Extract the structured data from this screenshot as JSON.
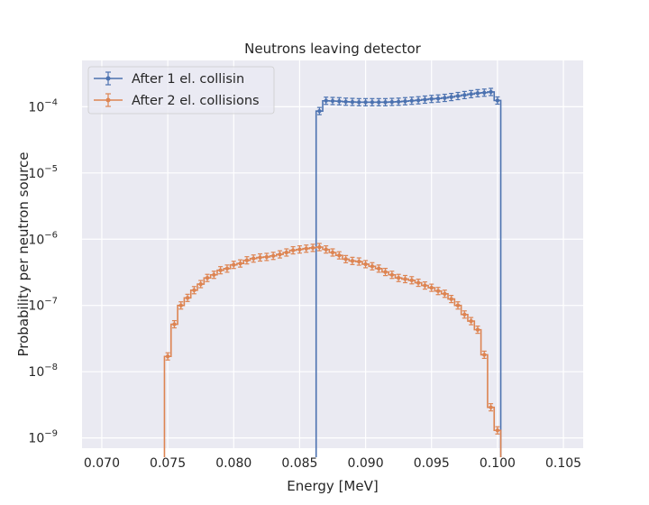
{
  "chart_data": {
    "type": "line",
    "title": "Neutrons leaving detector",
    "xlabel": "Energy [MeV]",
    "ylabel": "Probability per neutron source",
    "x_scale": "linear",
    "y_scale": "log",
    "xlim": [
      0.0685,
      0.1065
    ],
    "ylim": [
      7e-10,
      0.0005
    ],
    "xticks": [
      0.07,
      0.075,
      0.08,
      0.085,
      0.09,
      0.095,
      0.1,
      0.105
    ],
    "xtick_labels": [
      "0.070",
      "0.075",
      "0.080",
      "0.085",
      "0.090",
      "0.095",
      "0.100",
      "0.105"
    ],
    "ytick_exponents": [
      -9,
      -8,
      -7,
      -6,
      -5,
      -4
    ],
    "ytick_base": "10",
    "grid": true,
    "legend_position": "top-left",
    "background": "#eaeaf2",
    "series": [
      {
        "name": "After 1 el. collisin",
        "color": "#4c72b0",
        "x": [
          0.0865,
          0.087,
          0.0875,
          0.088,
          0.0885,
          0.089,
          0.0895,
          0.09,
          0.0905,
          0.091,
          0.0915,
          0.092,
          0.0925,
          0.093,
          0.0935,
          0.094,
          0.0945,
          0.095,
          0.0955,
          0.096,
          0.0965,
          0.097,
          0.0975,
          0.098,
          0.0985,
          0.099,
          0.0995,
          0.1
        ],
        "y": [
          8.6e-05,
          0.000123,
          0.000122,
          0.000121,
          0.000119,
          0.000118,
          0.000117,
          0.000117,
          0.000117,
          0.000117,
          0.000117,
          0.000118,
          0.000119,
          0.000121,
          0.000123,
          0.000125,
          0.000128,
          0.000131,
          0.000133,
          0.000136,
          0.00014,
          0.000145,
          0.00015,
          0.000155,
          0.00016,
          0.000163,
          0.000167,
          0.000124
        ],
        "floor": 7e-10
      },
      {
        "name": "After 2 el. collisions",
        "color": "#dd8452",
        "x": [
          0.075,
          0.0755,
          0.076,
          0.0765,
          0.077,
          0.0775,
          0.078,
          0.0785,
          0.079,
          0.0795,
          0.08,
          0.0805,
          0.081,
          0.0815,
          0.082,
          0.0825,
          0.083,
          0.0835,
          0.084,
          0.0845,
          0.085,
          0.0855,
          0.086,
          0.0865,
          0.087,
          0.0875,
          0.088,
          0.0885,
          0.089,
          0.0895,
          0.09,
          0.0905,
          0.091,
          0.0915,
          0.092,
          0.0925,
          0.093,
          0.0935,
          0.094,
          0.0945,
          0.095,
          0.0955,
          0.096,
          0.0965,
          0.097,
          0.0975,
          0.098,
          0.0985,
          0.099,
          0.0995,
          0.1
        ],
        "y": [
          1.7e-08,
          5.2e-08,
          1e-07,
          1.3e-07,
          1.7e-07,
          2.1e-07,
          2.6e-07,
          2.9e-07,
          3.4e-07,
          3.6e-07,
          4.1e-07,
          4.3e-07,
          4.8e-07,
          5.1e-07,
          5.3e-07,
          5.4e-07,
          5.6e-07,
          5.9e-07,
          6.3e-07,
          6.8e-07,
          7e-07,
          7.2e-07,
          7.4e-07,
          7.6e-07,
          7e-07,
          6.3e-07,
          5.7e-07,
          5e-07,
          4.7e-07,
          4.6e-07,
          4.2e-07,
          3.9e-07,
          3.6e-07,
          3.2e-07,
          2.9e-07,
          2.6e-07,
          2.5e-07,
          2.4e-07,
          2.2e-07,
          2e-07,
          1.85e-07,
          1.65e-07,
          1.5e-07,
          1.25e-07,
          1e-07,
          7.3e-08,
          5.8e-08,
          4.3e-08,
          1.8e-08,
          2.9e-09,
          1.3e-09
        ],
        "floor": 7e-10
      }
    ]
  }
}
